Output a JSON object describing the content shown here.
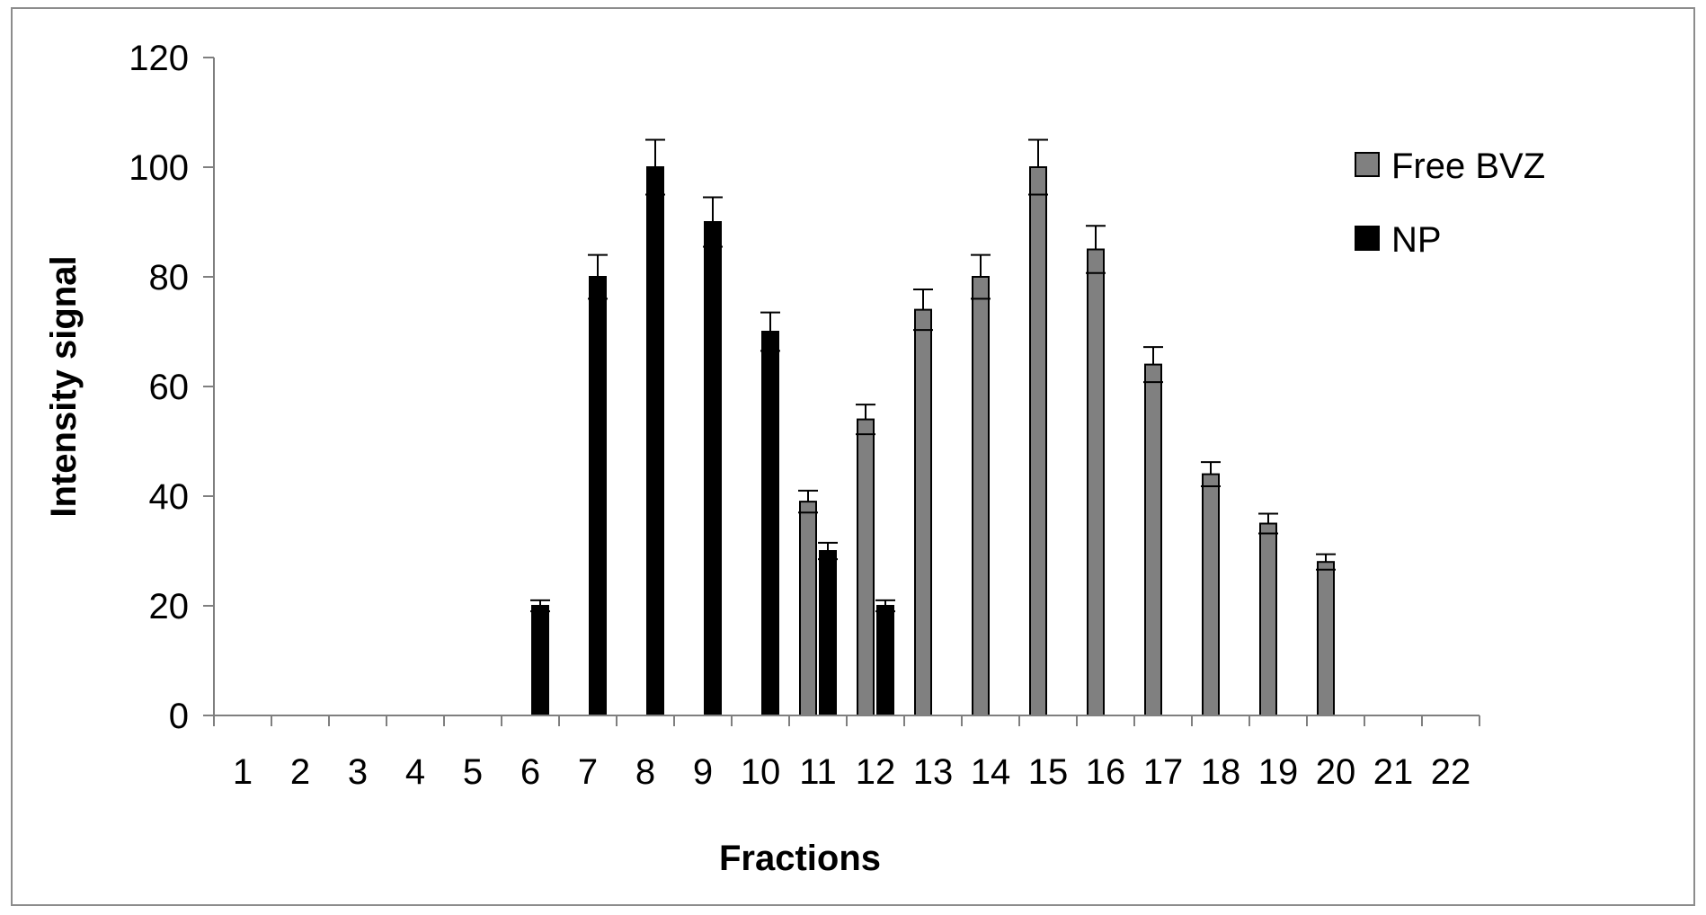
{
  "chart_data": {
    "type": "bar",
    "title": "",
    "xlabel": "Fractions",
    "ylabel": "Intensity signal",
    "ylim": [
      0,
      120
    ],
    "yticks": [
      0,
      20,
      40,
      60,
      80,
      100,
      120
    ],
    "grid": false,
    "legend_position": "right",
    "categories": [
      "1",
      "2",
      "3",
      "4",
      "5",
      "6",
      "7",
      "8",
      "9",
      "10",
      "11",
      "12",
      "13",
      "14",
      "15",
      "16",
      "17",
      "18",
      "19",
      "20",
      "21",
      "22"
    ],
    "series": [
      {
        "name": "Free BVZ",
        "color": "#808080",
        "values": [
          null,
          null,
          null,
          null,
          null,
          null,
          null,
          null,
          null,
          null,
          39,
          54,
          74,
          80,
          100,
          85,
          64,
          44,
          35,
          28,
          null,
          null
        ],
        "errors": [
          null,
          null,
          null,
          null,
          null,
          null,
          null,
          null,
          null,
          null,
          2,
          2.7,
          3.7,
          4,
          5,
          4.3,
          3.2,
          2.2,
          1.8,
          1.4,
          null,
          null
        ]
      },
      {
        "name": "NP",
        "color": "#000000",
        "values": [
          null,
          null,
          null,
          null,
          null,
          20,
          80,
          100,
          90,
          70,
          30,
          20,
          null,
          null,
          null,
          null,
          null,
          null,
          null,
          null,
          null,
          null
        ],
        "errors": [
          null,
          null,
          null,
          null,
          null,
          1,
          4,
          5,
          4.5,
          3.5,
          1.5,
          1,
          null,
          null,
          null,
          null,
          null,
          null,
          null,
          null,
          null,
          null
        ]
      }
    ]
  }
}
